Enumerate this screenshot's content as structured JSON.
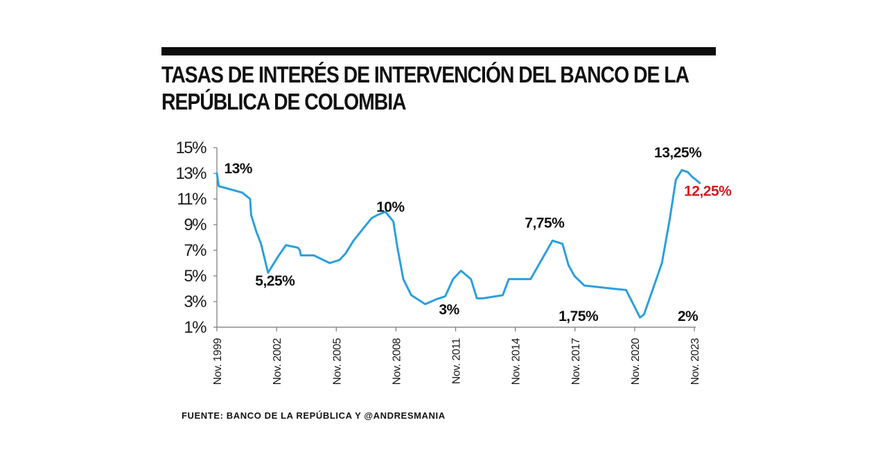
{
  "header": {
    "title_line1": "TASAS DE INTERÉS DE INTERVENCIÓN DEL BANCO DE LA",
    "title_line2": "REPÚBLICA DE COLOMBIA"
  },
  "footer": {
    "source": "FUENTE: BANCO DE LA REPÚBLICA Y @ANDRESMANIA"
  },
  "chart_data": {
    "type": "line",
    "title": "TASAS DE INTERÉS DE INTERVENCIÓN DEL BANCO DE LA REPÚBLICA DE COLOMBIA",
    "xlabel": "",
    "ylabel": "",
    "ylim": [
      1,
      15
    ],
    "y_ticks": [
      1,
      3,
      5,
      7,
      9,
      11,
      13,
      15
    ],
    "y_tick_labels": [
      "1%",
      "3%",
      "5%",
      "7%",
      "9%",
      "11%",
      "13%",
      "15%"
    ],
    "x_ticks": [
      1999.83,
      2002.83,
      2005.83,
      2008.83,
      2011.83,
      2014.83,
      2017.83,
      2020.83,
      2023.83
    ],
    "x_tick_labels": [
      "Nov. 1999",
      "Nov. 2002",
      "Nov. 2005",
      "Nov. 2008",
      "Nov. 2011",
      "Nov. 2014",
      "Nov. 2017",
      "Nov. 2020",
      "Nov. 2023"
    ],
    "grid": false,
    "color": "#2a9fdf",
    "series": [
      {
        "x": [
          1999.83,
          1999.92,
          2001.1,
          2001.5,
          2001.55,
          2001.8,
          2002.05,
          2002.4,
          2002.9,
          2003.3,
          2003.9,
          2004.0,
          2004.05,
          2004.7,
          2005.5,
          2006.0,
          2006.3,
          2006.7,
          2007.6,
          2007.9,
          2008.3,
          2008.7,
          2008.9,
          2009.2,
          2009.6,
          2010.3,
          2010.9,
          2011.3,
          2011.7,
          2012.1,
          2012.6,
          2012.9,
          2013.2,
          2014.2,
          2014.5,
          2015.0,
          2015.6,
          2016.7,
          2017.2,
          2017.5,
          2017.8,
          2018.3,
          2019.2,
          2020.4,
          2021.1,
          2021.3,
          2022.2,
          2022.6,
          2022.9,
          2023.2,
          2023.5,
          2023.7,
          2024.1
        ],
        "y": [
          13.0,
          12.0,
          11.5,
          11.0,
          9.75,
          8.5,
          7.5,
          5.25,
          6.5,
          7.4,
          7.2,
          7.0,
          6.6,
          6.6,
          6.0,
          6.25,
          6.75,
          7.75,
          9.5,
          9.75,
          10.0,
          9.25,
          7.25,
          4.75,
          3.5,
          2.8,
          3.2,
          3.4,
          4.75,
          5.4,
          4.75,
          3.25,
          3.25,
          3.5,
          4.75,
          4.75,
          4.75,
          7.75,
          7.5,
          5.85,
          5.0,
          4.25,
          4.1,
          3.9,
          1.75,
          2.0,
          6.0,
          9.5,
          12.5,
          13.25,
          13.1,
          12.75,
          12.25
        ]
      }
    ],
    "annotations": [
      {
        "text": "13%",
        "x": 2000.9,
        "y": 13.0
      },
      {
        "text": "5,25%",
        "x": 2002.75,
        "y": 4.25
      },
      {
        "text": "10%",
        "x": 2008.55,
        "y": 10.0
      },
      {
        "text": "3%",
        "x": 2011.5,
        "y": 2.0
      },
      {
        "text": "7,75%",
        "x": 2016.3,
        "y": 8.75
      },
      {
        "text": "1,75%",
        "x": 2018.0,
        "y": 1.5
      },
      {
        "text": "2%",
        "x": 2023.5,
        "y": 1.5
      },
      {
        "text": "13,25%",
        "x": 2023.0,
        "y": 14.25
      },
      {
        "text": "12,25%",
        "x": 2024.5,
        "y": 11.25,
        "color": "#d7191c"
      }
    ]
  }
}
